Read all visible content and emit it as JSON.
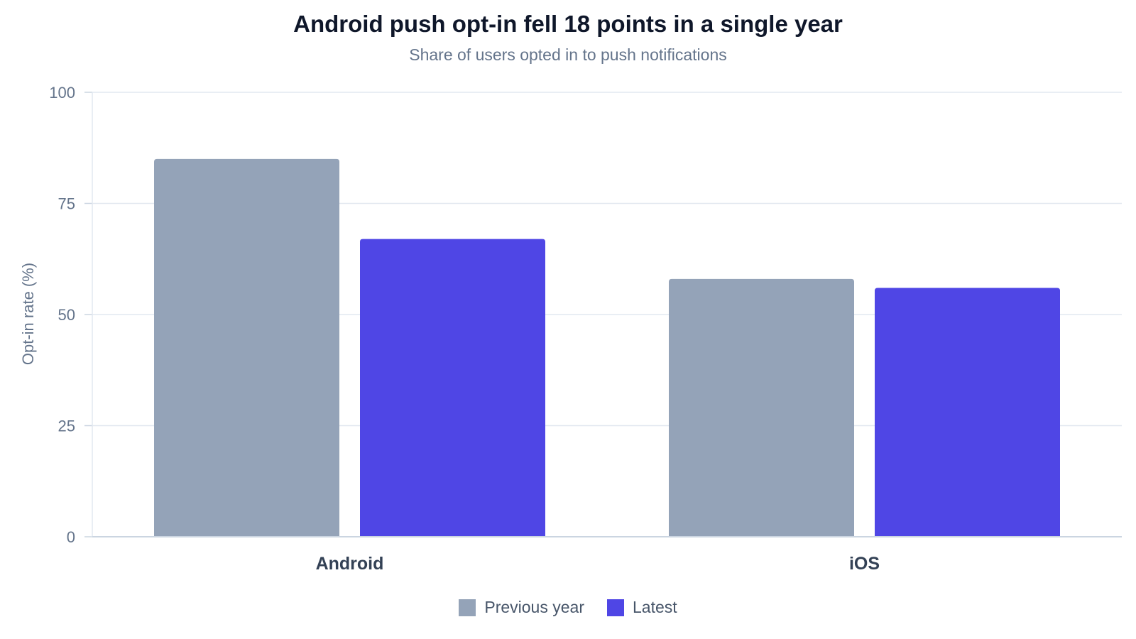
{
  "chart_data": {
    "type": "bar",
    "title": "Android push opt-in fell 18 points in a single year",
    "subtitle": "Share of users opted in to push notifications",
    "xlabel": "",
    "ylabel": "Opt-in rate (%)",
    "ylim": [
      0,
      100
    ],
    "yticks": [
      0,
      25,
      50,
      75,
      100
    ],
    "grid": true,
    "legend_position": "bottom",
    "categories": [
      "Android",
      "iOS"
    ],
    "series": [
      {
        "name": "Previous year",
        "color": "#94a3b8",
        "values": [
          85,
          58
        ]
      },
      {
        "name": "Latest",
        "color": "#4f46e5",
        "values": [
          67,
          56
        ]
      }
    ]
  }
}
